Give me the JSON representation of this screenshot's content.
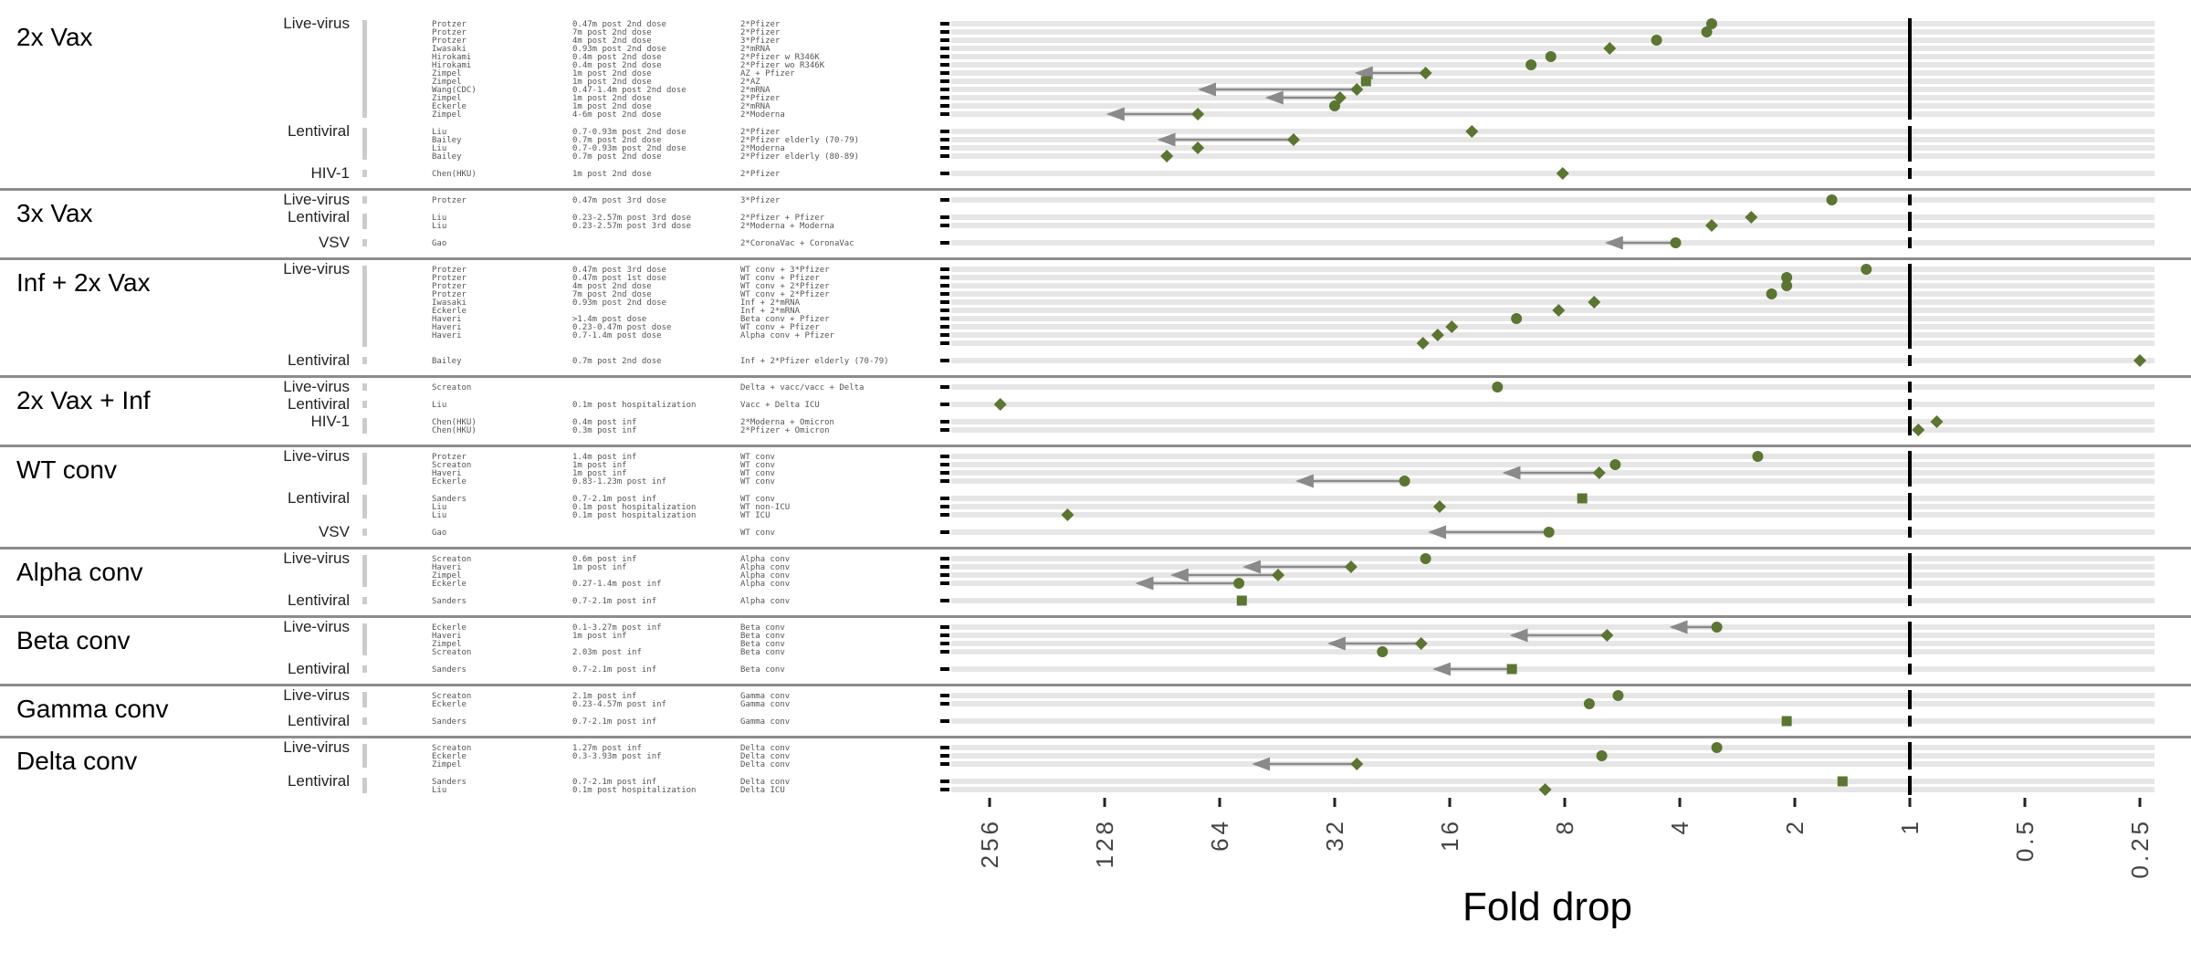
{
  "chart_data": {
    "type": "scatter",
    "title": "",
    "xlabel": "Fold drop",
    "ylabel": "",
    "x_scale": "log2-reversed",
    "xlim": [
      360,
      0.2
    ],
    "x_ticks": [
      {
        "value": 256,
        "label": "256"
      },
      {
        "value": 128,
        "label": "128"
      },
      {
        "value": 64,
        "label": "64"
      },
      {
        "value": 32,
        "label": "32"
      },
      {
        "value": 16,
        "label": "16"
      },
      {
        "value": 8,
        "label": "8"
      },
      {
        "value": 4,
        "label": "4"
      },
      {
        "value": 2,
        "label": "2"
      },
      {
        "value": 1,
        "label": "1"
      },
      {
        "value": 0.5,
        "label": "0.5"
      },
      {
        "value": 0.25,
        "label": "0.25"
      }
    ],
    "reference_line": 1,
    "colors": {
      "marker": "#5b7532",
      "arrow": "#8a8a8a",
      "row_band": "#e6e6e6",
      "separator": "#8c8c8c",
      "group_bar": "#cccccc"
    },
    "groups": [
      {
        "label": "2x Vax",
        "subgroups": [
          {
            "label": "Live-virus",
            "rows": [
              {
                "study": "Protzer",
                "timing": "0.47m post 2nd dose",
                "cohort": "2*Pfizer",
                "value": 3.3,
                "shape": "circle",
                "from": null
              },
              {
                "study": "Protzer",
                "timing": "7m post 2nd dose",
                "cohort": "2*Pfizer",
                "value": 3.4,
                "shape": "circle",
                "from": null
              },
              {
                "study": "Protzer",
                "timing": "4m post 2nd dose",
                "cohort": "3*Pfizer",
                "value": 4.6,
                "shape": "circle",
                "from": null
              },
              {
                "study": "Iwasaki",
                "timing": "0.93m post 2nd dose",
                "cohort": "2*mRNA",
                "value": 6.1,
                "shape": "diamond",
                "from": null
              },
              {
                "study": "Hirokami",
                "timing": "0.4m post 2nd dose",
                "cohort": "2*Pfizer w R346K",
                "value": 8.7,
                "shape": "circle",
                "from": null
              },
              {
                "study": "Hirokami",
                "timing": "0.4m post 2nd dose",
                "cohort": "2*Pfizer wo R346K",
                "value": 9.8,
                "shape": "circle",
                "from": null
              },
              {
                "study": "Zimpel",
                "timing": "1m post 2nd dose",
                "cohort": "AZ + Pfizer",
                "value": 18.5,
                "shape": "diamond",
                "from": 28
              },
              {
                "study": "Zimpel",
                "timing": "1m post 2nd dose",
                "cohort": "2*AZ",
                "value": 26.5,
                "shape": "square",
                "from": null
              },
              {
                "study": "Wang(CDC)",
                "timing": "0.47-1.4m post 2nd dose",
                "cohort": "2*mRNA",
                "value": 28,
                "shape": "diamond",
                "from": 72
              },
              {
                "study": "Zimpel",
                "timing": "1m post 2nd dose",
                "cohort": "2*Pfizer",
                "value": 31,
                "shape": "diamond",
                "from": 48
              },
              {
                "study": "Eckerle",
                "timing": "1m post 2nd dose",
                "cohort": "2*mRNA",
                "value": 32,
                "shape": "circle",
                "from": null
              },
              {
                "study": "Zimpel",
                "timing": "4-6m post 2nd dose",
                "cohort": "2*Moderna",
                "value": 73,
                "shape": "diamond",
                "from": 125
              }
            ]
          },
          {
            "label": "Lentiviral",
            "rows": [
              {
                "study": "Liu",
                "timing": "0.7-0.93m post 2nd dose",
                "cohort": "2*Pfizer",
                "value": 14,
                "shape": "diamond",
                "from": null
              },
              {
                "study": "Bailey",
                "timing": "0.7m post 2nd dose",
                "cohort": "2*Pfizer elderly (70-79)",
                "value": 41,
                "shape": "diamond",
                "from": 92
              },
              {
                "study": "Liu",
                "timing": "0.7-0.93m post 2nd dose",
                "cohort": "2*Moderna",
                "value": 73,
                "shape": "diamond",
                "from": null
              },
              {
                "study": "Bailey",
                "timing": "0.7m post 2nd dose",
                "cohort": "2*Pfizer elderly (80-89)",
                "value": 88,
                "shape": "diamond",
                "from": null
              }
            ]
          },
          {
            "label": "HIV-1",
            "rows": [
              {
                "study": "Chen(HKU)",
                "timing": "1m post 2nd dose",
                "cohort": "2*Pfizer",
                "value": 8.1,
                "shape": "diamond",
                "from": null
              }
            ]
          }
        ]
      },
      {
        "label": "3x Vax",
        "subgroups": [
          {
            "label": "Live-virus",
            "rows": [
              {
                "study": "Protzer",
                "timing": "0.47m post 3rd dose",
                "cohort": "3*Pfizer",
                "value": 1.6,
                "shape": "circle",
                "from": null
              }
            ]
          },
          {
            "label": "Lentiviral",
            "rows": [
              {
                "study": "Liu",
                "timing": "0.23-2.57m post 3rd dose",
                "cohort": "2*Pfizer + Pfizer",
                "value": 2.6,
                "shape": "diamond",
                "from": null
              },
              {
                "study": "Liu",
                "timing": "0.23-2.57m post 3rd dose",
                "cohort": "2*Moderna + Moderna",
                "value": 3.3,
                "shape": "diamond",
                "from": null
              }
            ]
          },
          {
            "label": "VSV",
            "rows": [
              {
                "study": "Gao",
                "timing": "",
                "cohort": "2*CoronaVac + CoronaVac",
                "value": 4.1,
                "shape": "circle",
                "from": 6.2
              }
            ]
          }
        ]
      },
      {
        "label": "Inf + 2x Vax",
        "subgroups": [
          {
            "label": "Live-virus",
            "rows": [
              {
                "study": "Protzer",
                "timing": "0.47m post 3rd dose",
                "cohort": "WT conv + 3*Pfizer",
                "value": 1.3,
                "shape": "circle",
                "from": null
              },
              {
                "study": "Protzer",
                "timing": "0.47m post 1st dose",
                "cohort": "WT conv + Pfizer",
                "value": 2.1,
                "shape": "circle",
                "from": null
              },
              {
                "study": "Protzer",
                "timing": "4m post 2nd dose",
                "cohort": "WT conv + 2*Pfizer",
                "value": 2.1,
                "shape": "circle",
                "from": null
              },
              {
                "study": "Protzer",
                "timing": "7m post 2nd dose",
                "cohort": "WT conv + 2*Pfizer",
                "value": 2.3,
                "shape": "circle",
                "from": null
              },
              {
                "study": "Iwasaki",
                "timing": "0.93m post 2nd dose",
                "cohort": "Inf + 2*mRNA",
                "value": 6.7,
                "shape": "diamond",
                "from": null
              },
              {
                "study": "Eckerle",
                "timing": "",
                "cohort": "Inf + 2*mRNA",
                "value": 8.3,
                "shape": "diamond",
                "from": null
              },
              {
                "study": "Haveri",
                "timing": ">1.4m post dose",
                "cohort": "Beta conv + Pfizer",
                "value": 10.7,
                "shape": "circle",
                "from": null
              },
              {
                "study": "Haveri",
                "timing": "0.23-0.47m post dose",
                "cohort": "WT conv + Pfizer",
                "value": 15.8,
                "shape": "diamond",
                "from": null
              },
              {
                "study": "Haveri",
                "timing": "0.7-1.4m post dose",
                "cohort": "Alpha conv + Pfizer",
                "value": 17.2,
                "shape": "diamond",
                "from": null
              },
              {
                "study": "",
                "timing": "",
                "cohort": "",
                "value": 18.8,
                "shape": "diamond",
                "from": null
              }
            ]
          },
          {
            "label": "Lentiviral",
            "rows": [
              {
                "study": "Bailey",
                "timing": "0.7m post 2nd dose",
                "cohort": "Inf + 2*Pfizer elderly (70-79)",
                "value": 0.25,
                "shape": "diamond",
                "from": null
              }
            ]
          }
        ]
      },
      {
        "label": "2x Vax + Inf",
        "subgroups": [
          {
            "label": "Live-virus",
            "rows": [
              {
                "study": "Screaton",
                "timing": "",
                "cohort": "Delta + vacc/vacc + Delta",
                "value": 12,
                "shape": "circle",
                "from": null
              }
            ]
          },
          {
            "label": "Lentiviral",
            "rows": [
              {
                "study": "Liu",
                "timing": "0.1m post hospitalization",
                "cohort": "Vacc + Delta ICU",
                "value": 240,
                "shape": "diamond",
                "from": null
              }
            ]
          },
          {
            "label": "HIV-1",
            "rows": [
              {
                "study": "Chen(HKU)",
                "timing": "0.4m post inf",
                "cohort": "2*Moderna + Omicron",
                "value": 0.85,
                "shape": "diamond",
                "from": null
              },
              {
                "study": "Chen(HKU)",
                "timing": "0.3m post inf",
                "cohort": "2*Pfizer + Omicron",
                "value": 0.95,
                "shape": "diamond",
                "from": null
              }
            ]
          }
        ]
      },
      {
        "label": "WT conv",
        "subgroups": [
          {
            "label": "Live-virus",
            "rows": [
              {
                "study": "Protzer",
                "timing": "1.4m post inf",
                "cohort": "WT conv",
                "value": 2.5,
                "shape": "circle",
                "from": null
              },
              {
                "study": "Screaton",
                "timing": "1m post inf",
                "cohort": "WT conv",
                "value": 5.9,
                "shape": "circle",
                "from": null
              },
              {
                "study": "Haveri",
                "timing": "1m post inf",
                "cohort": "WT conv",
                "value": 6.5,
                "shape": "diamond",
                "from": 11.5
              },
              {
                "study": "Eckerle",
                "timing": "0.83-1.23m post inf",
                "cohort": "WT conv",
                "value": 21,
                "shape": "circle",
                "from": 40
              }
            ]
          },
          {
            "label": "Lentiviral",
            "rows": [
              {
                "study": "Sanders",
                "timing": "0.7-2.1m post inf",
                "cohort": "WT conv",
                "value": 7.2,
                "shape": "square",
                "from": null
              },
              {
                "study": "Liu",
                "timing": "0.1m post hospitalization",
                "cohort": "WT non-ICU",
                "value": 17,
                "shape": "diamond",
                "from": null
              },
              {
                "study": "Liu",
                "timing": "0.1m post hospitalization",
                "cohort": "WT ICU",
                "value": 160,
                "shape": "diamond",
                "from": null
              }
            ]
          },
          {
            "label": "VSV",
            "rows": [
              {
                "study": "Gao",
                "timing": "",
                "cohort": "WT conv",
                "value": 8.8,
                "shape": "circle",
                "from": 18
              }
            ]
          }
        ]
      },
      {
        "label": "Alpha conv",
        "subgroups": [
          {
            "label": "Live-virus",
            "rows": [
              {
                "study": "Screaton",
                "timing": "0.6m post inf",
                "cohort": "Alpha conv",
                "value": 18.5,
                "shape": "circle",
                "from": null
              },
              {
                "study": "Haveri",
                "timing": "1m post inf",
                "cohort": "Alpha conv",
                "value": 29,
                "shape": "diamond",
                "from": 55
              },
              {
                "study": "Zimpel",
                "timing": "",
                "cohort": "Alpha conv",
                "value": 45,
                "shape": "diamond",
                "from": 85
              },
              {
                "study": "Eckerle",
                "timing": "0.27-1.4m post inf",
                "cohort": "Alpha conv",
                "value": 57,
                "shape": "circle",
                "from": 105
              }
            ]
          },
          {
            "label": "Lentiviral",
            "rows": [
              {
                "study": "Sanders",
                "timing": "0.7-2.1m post inf",
                "cohort": "Alpha conv",
                "value": 56,
                "shape": "square",
                "from": null
              }
            ]
          }
        ]
      },
      {
        "label": "Beta conv",
        "subgroups": [
          {
            "label": "Live-virus",
            "rows": [
              {
                "study": "Eckerle",
                "timing": "0.1-3.27m post inf",
                "cohort": "Beta conv",
                "value": 3.2,
                "shape": "circle",
                "from": 4.2
              },
              {
                "study": "Haveri",
                "timing": "1m post inf",
                "cohort": "Beta conv",
                "value": 6.2,
                "shape": "diamond",
                "from": 11
              },
              {
                "study": "Zimpel",
                "timing": "",
                "cohort": "Beta conv",
                "value": 19,
                "shape": "diamond",
                "from": 33
              },
              {
                "study": "Screaton",
                "timing": "2.03m post inf",
                "cohort": "Beta conv",
                "value": 24,
                "shape": "circle",
                "from": null
              }
            ]
          },
          {
            "label": "Lentiviral",
            "rows": [
              {
                "study": "Sanders",
                "timing": "0.7-2.1m post inf",
                "cohort": "Beta conv",
                "value": 11,
                "shape": "square",
                "from": 17.5
              }
            ]
          }
        ]
      },
      {
        "label": "Gamma conv",
        "subgroups": [
          {
            "label": "Live-virus",
            "rows": [
              {
                "study": "Screaton",
                "timing": "2.1m post inf",
                "cohort": "Gamma conv",
                "value": 5.8,
                "shape": "circle",
                "from": null
              },
              {
                "study": "Eckerle",
                "timing": "0.23-4.57m post inf",
                "cohort": "Gamma conv",
                "value": 6.9,
                "shape": "circle",
                "from": null
              }
            ]
          },
          {
            "label": "Lentiviral",
            "rows": [
              {
                "study": "Sanders",
                "timing": "0.7-2.1m post inf",
                "cohort": "Gamma conv",
                "value": 2.1,
                "shape": "square",
                "from": null
              }
            ]
          }
        ]
      },
      {
        "label": "Delta conv",
        "subgroups": [
          {
            "label": "Live-virus",
            "rows": [
              {
                "study": "Screaton",
                "timing": "1.27m post inf",
                "cohort": "Delta conv",
                "value": 3.2,
                "shape": "circle",
                "from": null
              },
              {
                "study": "Eckerle",
                "timing": "0.3-3.93m post inf",
                "cohort": "Delta conv",
                "value": 6.4,
                "shape": "circle",
                "from": null
              },
              {
                "study": "Zimpel",
                "timing": "",
                "cohort": "Delta conv",
                "value": 28,
                "shape": "diamond",
                "from": 52
              }
            ]
          },
          {
            "label": "Lentiviral",
            "rows": [
              {
                "study": "Sanders",
                "timing": "0.7-2.1m post inf",
                "cohort": "Delta conv",
                "value": 1.5,
                "shape": "square",
                "from": null
              },
              {
                "study": "Liu",
                "timing": "0.1m post hospitalization",
                "cohort": "Delta ICU",
                "value": 9,
                "shape": "diamond",
                "from": null
              }
            ]
          }
        ]
      }
    ]
  }
}
